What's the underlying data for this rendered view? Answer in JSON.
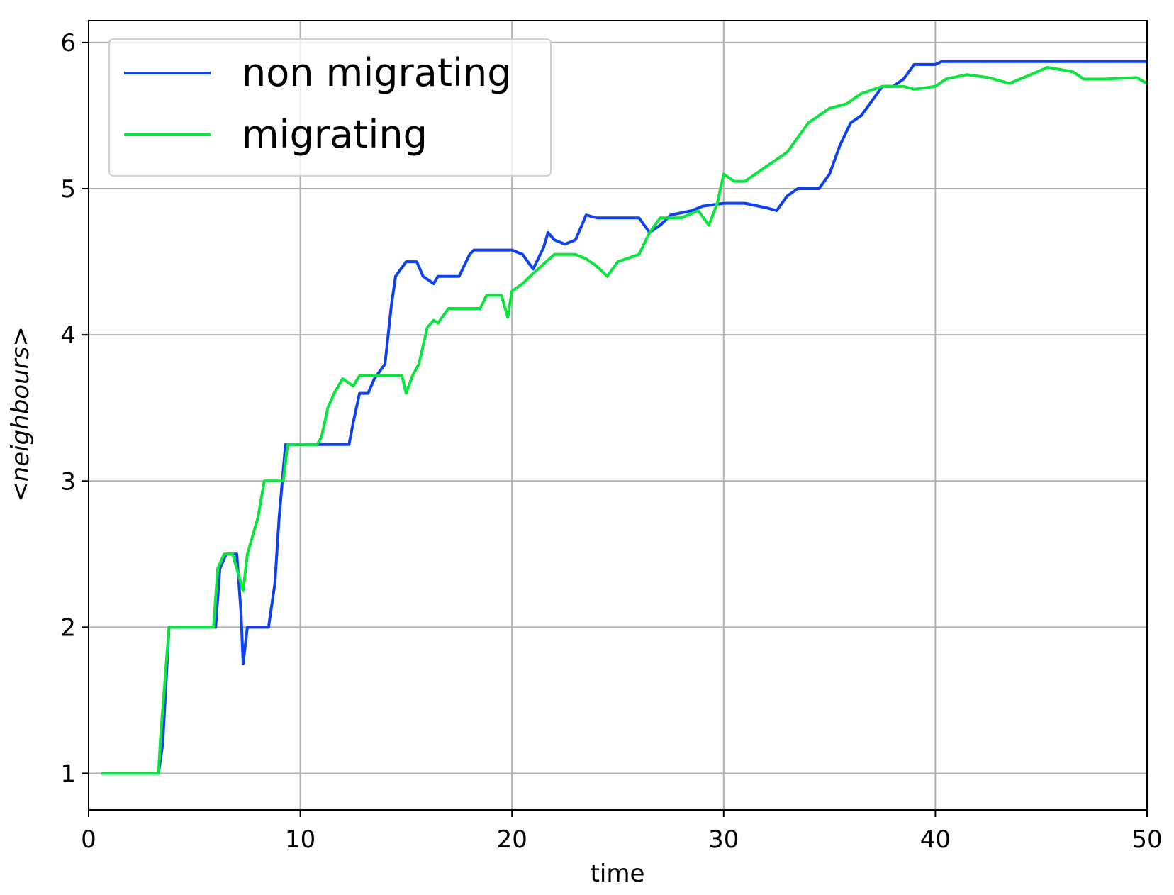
{
  "chart_data": {
    "type": "line",
    "xlabel": "time",
    "ylabel": "<neighbours>",
    "xlim": [
      0,
      50
    ],
    "ylim": [
      0.75,
      6.15
    ],
    "xticks": [
      0,
      10,
      20,
      30,
      40,
      50
    ],
    "yticks": [
      1,
      2,
      3,
      4,
      5,
      6
    ],
    "grid": true,
    "legend": "upper left",
    "series": [
      {
        "name": "non migrating",
        "color": "#0d3ff5",
        "x": [
          0.6,
          3.3,
          3.5,
          3.8,
          6,
          6.2,
          6.5,
          7,
          7.2,
          7.3,
          7.5,
          8.5,
          8.8,
          9,
          9.3,
          12.3,
          12.5,
          12.8,
          13.2,
          13.5,
          14,
          14.3,
          14.5,
          15,
          15.5,
          15.8,
          16.3,
          16.5,
          17.5,
          18,
          18.2,
          20,
          20.5,
          21,
          21.5,
          21.7,
          22,
          22.5,
          23,
          23.3,
          23.5,
          24,
          25,
          26,
          26.5,
          27,
          27.5,
          28.5,
          29,
          30,
          31,
          32,
          32.5,
          33,
          33.5,
          34.5,
          35,
          35.5,
          36,
          36.5,
          37,
          37.5,
          38,
          38.5,
          39,
          40,
          40.3,
          50
        ],
        "values": [
          1,
          1,
          1.2,
          2,
          2,
          2.4,
          2.5,
          2.5,
          2.1,
          1.75,
          2,
          2,
          2.3,
          2.75,
          3.25,
          3.25,
          3.4,
          3.6,
          3.6,
          3.7,
          3.8,
          4.2,
          4.4,
          4.5,
          4.5,
          4.4,
          4.35,
          4.4,
          4.4,
          4.55,
          4.58,
          4.58,
          4.55,
          4.45,
          4.6,
          4.7,
          4.65,
          4.62,
          4.65,
          4.75,
          4.82,
          4.8,
          4.8,
          4.8,
          4.7,
          4.75,
          4.82,
          4.85,
          4.88,
          4.9,
          4.9,
          4.87,
          4.85,
          4.95,
          5,
          5,
          5.1,
          5.3,
          5.45,
          5.5,
          5.6,
          5.7,
          5.7,
          5.75,
          5.85,
          5.85,
          5.87,
          5.87
        ]
      },
      {
        "name": "migrating",
        "color": "#0ae53c",
        "x": [
          0.6,
          3.3,
          3.4,
          3.8,
          5.9,
          6.1,
          6.4,
          6.8,
          7.3,
          7.5,
          8,
          8.3,
          9.2,
          9.4,
          10.8,
          11,
          11.3,
          11.6,
          12,
          12.5,
          12.8,
          14.8,
          15,
          15.3,
          15.6,
          16,
          16.3,
          16.5,
          17,
          18.5,
          18.8,
          19.5,
          19.8,
          20,
          20.5,
          21,
          22,
          23,
          23.5,
          24,
          24.5,
          25,
          26,
          26.5,
          27,
          28,
          28.8,
          29.3,
          29.7,
          30,
          30.5,
          31,
          31.5,
          32,
          33,
          33.5,
          34,
          34.5,
          35,
          35.8,
          36.5,
          37.5,
          38.5,
          39,
          40,
          40.5,
          41.5,
          42.5,
          43.5,
          44.5,
          45.3,
          46.5,
          47,
          48,
          49.5,
          50
        ],
        "values": [
          1,
          1,
          1.25,
          2,
          2,
          2.4,
          2.5,
          2.5,
          2.25,
          2.5,
          2.75,
          3,
          3,
          3.25,
          3.25,
          3.3,
          3.5,
          3.6,
          3.7,
          3.65,
          3.72,
          3.72,
          3.6,
          3.72,
          3.8,
          4.05,
          4.1,
          4.08,
          4.18,
          4.18,
          4.27,
          4.27,
          4.12,
          4.3,
          4.35,
          4.42,
          4.55,
          4.55,
          4.52,
          4.47,
          4.4,
          4.5,
          4.55,
          4.7,
          4.8,
          4.8,
          4.85,
          4.75,
          4.9,
          5.1,
          5.05,
          5.05,
          5.1,
          5.15,
          5.25,
          5.35,
          5.45,
          5.5,
          5.55,
          5.58,
          5.65,
          5.7,
          5.7,
          5.68,
          5.7,
          5.75,
          5.78,
          5.76,
          5.72,
          5.78,
          5.83,
          5.8,
          5.75,
          5.75,
          5.76,
          5.72
        ]
      }
    ]
  }
}
